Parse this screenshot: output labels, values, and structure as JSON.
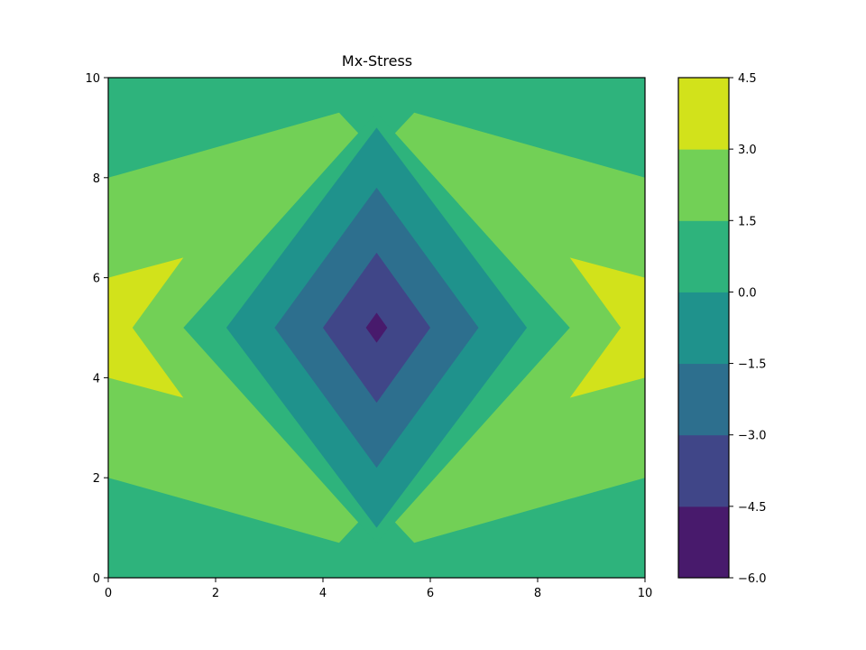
{
  "chart_data": {
    "type": "contourf",
    "title": "Mx-Stress",
    "xlabel": "",
    "ylabel": "",
    "xlim": [
      0,
      10
    ],
    "ylim": [
      0,
      10
    ],
    "x_ticks": [
      "0",
      "2",
      "4",
      "6",
      "8",
      "10"
    ],
    "y_ticks": [
      "0",
      "2",
      "4",
      "6",
      "8",
      "10"
    ],
    "grid": false,
    "colorbar": {
      "levels": [
        -6.0,
        -4.5,
        -3.0,
        -1.5,
        0.0,
        1.5,
        3.0,
        4.5
      ],
      "tick_labels": [
        "−6.0",
        "−4.5",
        "−3.0",
        "−1.5",
        "0.0",
        "1.5",
        "3.0",
        "4.5"
      ],
      "band_colors": [
        "#481a6c",
        "#404688",
        "#2d6f8e",
        "#1f928c",
        "#2eb37c",
        "#72d056",
        "#d2e21b"
      ]
    },
    "regions": [
      {
        "level_range": [
          0.0,
          1.5
        ],
        "polygon": [
          [
            0,
            0
          ],
          [
            10,
            0
          ],
          [
            10,
            10
          ],
          [
            0,
            10
          ]
        ]
      },
      {
        "level_range": [
          1.5,
          3.0
        ],
        "polygon": [
          [
            0,
            8
          ],
          [
            4.3,
            9.3
          ],
          [
            5,
            8.5
          ],
          [
            5.7,
            9.3
          ],
          [
            10,
            8
          ],
          [
            10,
            2
          ],
          [
            5.7,
            0.7
          ],
          [
            5,
            1.5
          ],
          [
            4.3,
            0.7
          ],
          [
            0,
            2
          ]
        ]
      },
      {
        "level_range": [
          3.0,
          4.5
        ],
        "polygon": [
          [
            0,
            6
          ],
          [
            1.4,
            6.4
          ],
          [
            0.45,
            5
          ],
          [
            1.4,
            3.6
          ],
          [
            0,
            4
          ]
        ]
      },
      {
        "level_range": [
          3.0,
          4.5
        ],
        "polygon": [
          [
            10,
            6
          ],
          [
            8.6,
            6.4
          ],
          [
            9.55,
            5
          ],
          [
            8.6,
            3.6
          ],
          [
            10,
            4
          ]
        ]
      },
      {
        "level_range": [
          0.0,
          1.5
        ],
        "polygon": [
          [
            5,
            9.3
          ],
          [
            1.4,
            5
          ],
          [
            5,
            0.7
          ],
          [
            8.6,
            5
          ]
        ]
      },
      {
        "level_range": [
          -1.5,
          0.0
        ],
        "polygon": [
          [
            5,
            9
          ],
          [
            2.2,
            5
          ],
          [
            5,
            1
          ],
          [
            7.8,
            5
          ]
        ]
      },
      {
        "level_range": [
          -3.0,
          -1.5
        ],
        "polygon": [
          [
            5,
            7.8
          ],
          [
            3.1,
            5
          ],
          [
            5,
            2.2
          ],
          [
            6.9,
            5
          ]
        ]
      },
      {
        "level_range": [
          -4.5,
          -3.0
        ],
        "polygon": [
          [
            5,
            6.5
          ],
          [
            4,
            5
          ],
          [
            5,
            3.5
          ],
          [
            6,
            5
          ]
        ]
      },
      {
        "level_range": [
          -6.0,
          -4.5
        ],
        "polygon": [
          [
            5,
            5.3
          ],
          [
            4.8,
            5
          ],
          [
            5,
            4.7
          ],
          [
            5.2,
            5
          ]
        ]
      }
    ]
  }
}
